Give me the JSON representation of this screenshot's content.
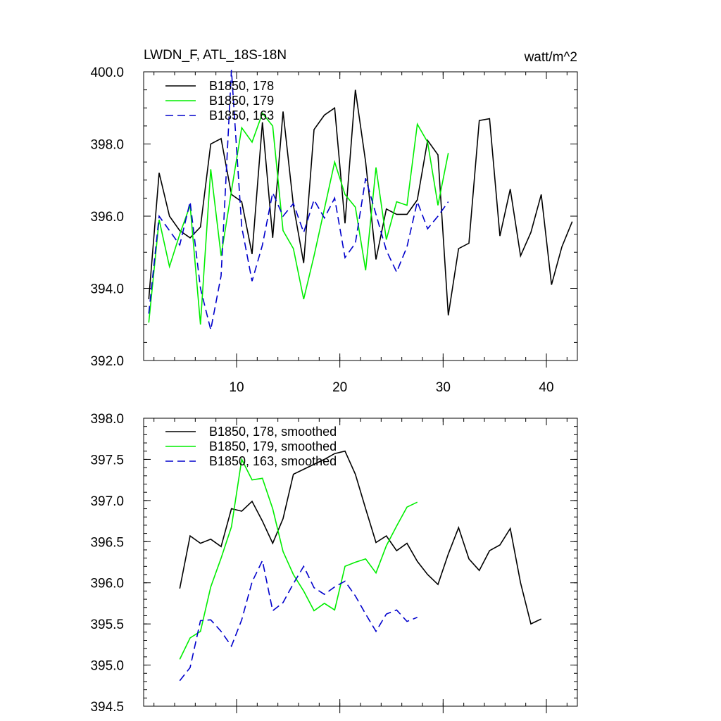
{
  "chart_data": [
    {
      "type": "line",
      "title": "LWDN_F, ATL_18S-18N",
      "units_label": "watt/m^2",
      "xlim": [
        1,
        43
      ],
      "ylim": [
        392,
        400
      ],
      "x_ticks": [
        10,
        20,
        30,
        40
      ],
      "x_tick_labels": [
        "10",
        "20",
        "30",
        "40"
      ],
      "y_ticks": [
        392,
        394,
        396,
        398,
        400
      ],
      "y_tick_labels": [
        "392.0",
        "394.0",
        "396.0",
        "398.0",
        "400.0"
      ],
      "legend_position": "top-left",
      "series": [
        {
          "name": "B1850, 178",
          "color": "#000000",
          "dash": "solid",
          "x": [
            1.5,
            2.5,
            3.5,
            4.5,
            5.5,
            6.5,
            7.5,
            8.5,
            9.5,
            10.5,
            11.5,
            12.5,
            13.5,
            14.5,
            15.5,
            16.5,
            17.5,
            18.5,
            19.5,
            20.5,
            21.5,
            22.5,
            23.5,
            24.5,
            25.5,
            26.5,
            27.5,
            28.5,
            29.5,
            30.5,
            31.5,
            32.5,
            33.5,
            34.5,
            35.5,
            36.5,
            37.5,
            38.5,
            39.5,
            40.5,
            41.5,
            42.5
          ],
          "values": [
            393.7,
            397.2,
            396.0,
            395.6,
            395.4,
            395.7,
            398.0,
            398.15,
            396.6,
            396.4,
            394.95,
            398.6,
            395.4,
            398.9,
            396.3,
            394.7,
            398.4,
            398.8,
            399.0,
            395.8,
            399.5,
            397.5,
            394.8,
            396.2,
            396.05,
            396.05,
            396.45,
            398.1,
            397.7,
            393.25,
            395.1,
            395.25,
            398.65,
            398.7,
            395.45,
            396.75,
            394.9,
            395.55,
            396.6,
            394.1,
            395.15,
            395.85
          ]
        },
        {
          "name": "B1850, 179",
          "color": "#00ee00",
          "dash": "solid",
          "x": [
            1.5,
            2.5,
            3.5,
            4.5,
            5.5,
            6.5,
            7.5,
            8.5,
            9.5,
            10.5,
            11.5,
            12.5,
            13.5,
            14.5,
            15.5,
            16.5,
            17.5,
            18.5,
            19.5,
            20.5,
            21.5,
            22.5,
            23.5,
            24.5,
            25.5,
            26.5,
            27.5,
            28.5,
            29.5,
            30.5
          ],
          "values": [
            393.05,
            395.9,
            394.6,
            395.5,
            396.3,
            393.0,
            397.3,
            394.9,
            396.7,
            398.45,
            398.05,
            398.85,
            398.5,
            395.6,
            395.1,
            393.7,
            394.9,
            396.2,
            397.5,
            396.6,
            396.25,
            394.5,
            397.35,
            395.35,
            396.4,
            396.3,
            398.55,
            398.05,
            396.3,
            397.75
          ]
        },
        {
          "name": "B1850, 163",
          "color": "#0000cc",
          "dash": "dashed",
          "x": [
            1.5,
            2.5,
            3.5,
            4.5,
            5.5,
            6.5,
            7.5,
            8.5,
            9.5,
            10.5,
            11.5,
            12.5,
            13.5,
            14.5,
            15.5,
            16.5,
            17.5,
            18.5,
            19.5,
            20.5,
            21.5,
            22.5,
            23.5,
            24.5,
            25.5,
            26.5,
            27.5,
            28.5,
            29.5,
            30.5
          ],
          "values": [
            393.3,
            396.0,
            395.6,
            395.2,
            396.4,
            394.0,
            392.85,
            394.35,
            400.05,
            395.7,
            394.2,
            395.2,
            396.65,
            396.0,
            396.35,
            395.55,
            396.45,
            395.95,
            396.5,
            394.85,
            395.25,
            397.05,
            396.05,
            395.05,
            394.45,
            395.15,
            396.4,
            395.65,
            396.0,
            396.4
          ]
        }
      ]
    },
    {
      "type": "line",
      "xlim": [
        1,
        43
      ],
      "ylim": [
        394.5,
        398.0
      ],
      "x_ticks": [
        10,
        20,
        30,
        40
      ],
      "y_ticks": [
        394.5,
        395.0,
        395.5,
        396.0,
        396.5,
        397.0,
        397.5,
        398.0
      ],
      "y_tick_labels": [
        "394.5",
        "395.0",
        "395.5",
        "396.0",
        "396.5",
        "397.0",
        "397.5",
        "398.0"
      ],
      "legend_position": "top-left",
      "series": [
        {
          "name": "B1850, 178, smoothed",
          "color": "#000000",
          "dash": "solid",
          "x": [
            4.5,
            5.5,
            6.5,
            7.5,
            8.5,
            9.5,
            10.5,
            11.5,
            12.5,
            13.5,
            14.5,
            15.5,
            16.5,
            17.5,
            18.5,
            19.5,
            20.5,
            21.5,
            22.5,
            23.5,
            24.5,
            25.5,
            26.5,
            27.5,
            28.5,
            29.5,
            30.5,
            31.5,
            32.5,
            33.5,
            34.5,
            35.5,
            36.5,
            37.5,
            38.5,
            39.5
          ],
          "values": [
            395.93,
            396.57,
            396.48,
            396.53,
            396.44,
            396.9,
            396.87,
            396.99,
            396.75,
            396.48,
            396.78,
            397.32,
            397.38,
            397.44,
            397.5,
            397.57,
            397.6,
            397.32,
            396.9,
            396.49,
            396.57,
            396.39,
            396.48,
            396.26,
            396.1,
            395.98,
            396.35,
            396.67,
            396.29,
            396.15,
            396.39,
            396.46,
            396.66,
            396.0,
            395.5,
            395.56
          ]
        },
        {
          "name": "B1850, 179, smoothed",
          "color": "#00ee00",
          "dash": "solid",
          "x": [
            4.5,
            5.5,
            6.5,
            7.5,
            8.5,
            9.5,
            10.5,
            11.5,
            12.5,
            13.5,
            14.5,
            15.5,
            16.5,
            17.5,
            18.5,
            19.5,
            20.5,
            21.5,
            22.5,
            23.5,
            24.5,
            25.5,
            26.5,
            27.5
          ],
          "values": [
            395.07,
            395.33,
            395.41,
            395.95,
            396.3,
            396.68,
            397.5,
            397.25,
            397.27,
            396.9,
            396.38,
            396.1,
            395.9,
            395.66,
            395.75,
            395.67,
            396.2,
            396.25,
            396.29,
            396.12,
            396.45,
            396.69,
            396.92,
            396.98
          ]
        },
        {
          "name": "B1850, 163, smoothed",
          "color": "#0000cc",
          "dash": "dashed",
          "x": [
            4.5,
            5.5,
            6.5,
            7.5,
            8.5,
            9.5,
            10.5,
            11.5,
            12.5,
            13.5,
            14.5,
            15.5,
            16.5,
            17.5,
            18.5,
            19.5,
            20.5,
            21.5,
            22.5,
            23.5,
            24.5,
            25.5,
            26.5,
            27.5
          ],
          "values": [
            394.81,
            394.97,
            395.54,
            395.55,
            395.41,
            395.23,
            395.55,
            396.01,
            396.27,
            395.66,
            395.76,
            395.99,
            396.2,
            395.94,
            395.86,
            395.95,
            396.02,
            395.84,
            395.62,
            395.41,
            395.62,
            395.67,
            395.53,
            395.58
          ]
        }
      ]
    }
  ]
}
